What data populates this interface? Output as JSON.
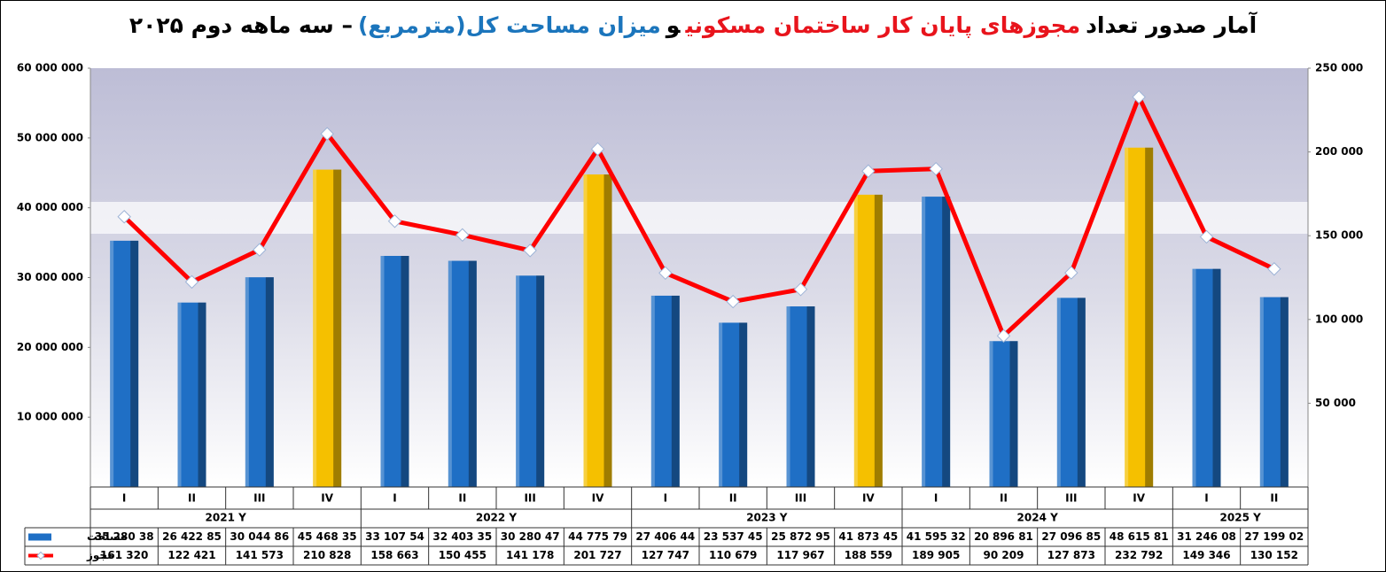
{
  "chart_data": {
    "type": "bar-line",
    "title_parts": [
      {
        "text": "آمار صدور تعداد",
        "color": "#000000"
      },
      {
        "text": "مجوزهای پایان کار ساختمان مسکونی",
        "color": "#e8141c"
      },
      {
        "text": "و",
        "color": "#000000"
      },
      {
        "text": "میزان مساحت کل(مترمربع)",
        "color": "#1b75bc"
      },
      {
        "text": "– سه ماهه دوم ۲۰۲۵",
        "color": "#000000"
      }
    ],
    "groups": [
      {
        "label": "2021 Y",
        "quarters": [
          "I",
          "II",
          "III",
          "IV"
        ]
      },
      {
        "label": "2022 Y",
        "quarters": [
          "I",
          "II",
          "III",
          "IV"
        ]
      },
      {
        "label": "2023 Y",
        "quarters": [
          "I",
          "II",
          "III",
          "IV"
        ]
      },
      {
        "label": "2024 Y",
        "quarters": [
          "I",
          "II",
          "III",
          "IV"
        ]
      },
      {
        "label": "2025 Y",
        "quarters": [
          "I",
          "II"
        ]
      }
    ],
    "series": [
      {
        "name": "مساحت",
        "kind": "bar",
        "color": "#1f6fc5",
        "colors": [
          "#1f6fc5",
          "#1f6fc5",
          "#1f6fc5",
          "#f5c000",
          "#1f6fc5",
          "#1f6fc5",
          "#1f6fc5",
          "#f5c000",
          "#1f6fc5",
          "#1f6fc5",
          "#1f6fc5",
          "#f5c000",
          "#1f6fc5",
          "#1f6fc5",
          "#1f6fc5",
          "#f5c000",
          "#1f6fc5",
          "#1f6fc5"
        ],
        "values": [
          35280380,
          26422850,
          30044860,
          45468350,
          33107540,
          32403350,
          30280470,
          44775790,
          27406440,
          23537450,
          25872950,
          41873450,
          41595320,
          20896810,
          27096850,
          48615810,
          31246080,
          27199020
        ],
        "value_labels": [
          "35 280 38",
          "26 422 85",
          "30 044 86",
          "45 468 35",
          "33 107 54",
          "32 403 35",
          "30 280 47",
          "44 775 79",
          "27 406 44",
          "23 537 45",
          "25 872 95",
          "41 873 45",
          "41 595 32",
          "20 896 81",
          "27 096 85",
          "48 615 81",
          "31 246 08",
          "27 199 02"
        ]
      },
      {
        "name": "مجوز",
        "kind": "line",
        "axis": "y2",
        "color": "#ff0000",
        "values": [
          161320,
          122421,
          141573,
          210828,
          158663,
          150455,
          141178,
          201727,
          127747,
          110679,
          117967,
          188559,
          189905,
          90209,
          127873,
          232792,
          149346,
          130152
        ],
        "value_labels": [
          "161 320",
          "122 421",
          "141 573",
          "210 828",
          "158 663",
          "150 455",
          "141 178",
          "201 727",
          "127 747",
          "110 679",
          "117 967",
          "188 559",
          "189 905",
          "90 209",
          "127 873",
          "232 792",
          "149 346",
          "130 152"
        ]
      }
    ],
    "ylim": [
      0,
      60000000
    ],
    "yticks": [
      {
        "value": 10000000,
        "label": "10 000 000"
      },
      {
        "value": 20000000,
        "label": "20 000 000"
      },
      {
        "value": 30000000,
        "label": "30 000 000"
      },
      {
        "value": 40000000,
        "label": "40 000 000"
      },
      {
        "value": 50000000,
        "label": "50 000 000"
      },
      {
        "value": 60000000,
        "label": "60 000 000"
      }
    ],
    "y2lim": [
      0,
      250000
    ],
    "y2ticks": [
      {
        "value": 50000,
        "label": "50 000"
      },
      {
        "value": 100000,
        "label": "100 000"
      },
      {
        "value": 150000,
        "label": "150 000"
      },
      {
        "value": 200000,
        "label": "200 000"
      },
      {
        "value": 250000,
        "label": "250 000"
      }
    ]
  }
}
